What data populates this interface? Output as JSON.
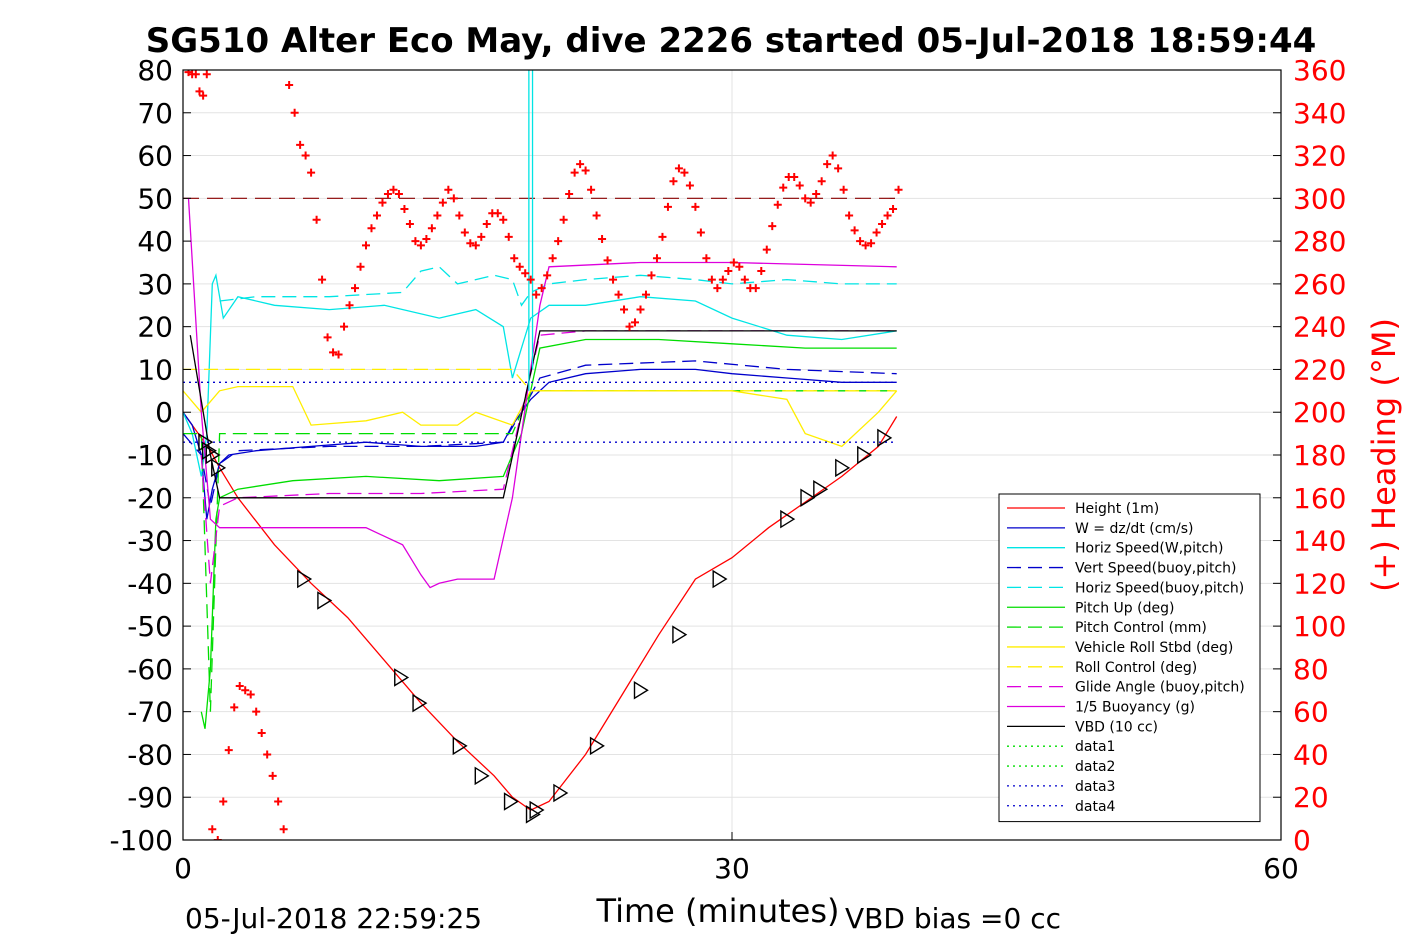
{
  "chart_data": {
    "type": "line",
    "title": "SG510 Alter Eco May, dive 2226 started 05-Jul-2018 18:59:44",
    "xlabel": "Time (minutes)",
    "ylabel_right": "(+) Heading (°M)",
    "xlim": [
      0,
      60
    ],
    "ylim": [
      -100,
      80
    ],
    "y2lim": [
      0,
      360
    ],
    "xticks": [
      "0",
      "30",
      "60"
    ],
    "yticks": [
      "80",
      "70",
      "60",
      "50",
      "40",
      "30",
      "20",
      "10",
      "0",
      "-10",
      "-20",
      "-30",
      "-40",
      "-50",
      "-60",
      "-70",
      "-80",
      "-90",
      "-100"
    ],
    "y2ticks": [
      "360",
      "340",
      "320",
      "300",
      "280",
      "260",
      "240",
      "220",
      "200",
      "180",
      "160",
      "140",
      "120",
      "100",
      "80",
      "60",
      "40",
      "20",
      "0"
    ],
    "grid": true,
    "legend_position": "lower-right",
    "footer_left": "05-Jul-2018 22:59:25",
    "footer_right": "VBD bias =0 cc",
    "colors": {
      "height": "#ff0000",
      "w": "#0000cc",
      "horiz_w": "#00e5e5",
      "pitch": "#00dd00",
      "roll": "#ffee00",
      "glide": "#dd00dd",
      "buoy": "#dd00dd",
      "vbd": "#000000",
      "heading": "#ff0000"
    },
    "series": [
      {
        "name": "Height (1m)",
        "color": "#ff0000",
        "style": "solid",
        "x": [
          0,
          0.5,
          1,
          1.5,
          2,
          3,
          5,
          7,
          9,
          11,
          13,
          15,
          17,
          18,
          19,
          20,
          22,
          24,
          26,
          28,
          30,
          32,
          34,
          36,
          38,
          39
        ],
        "y": [
          0,
          -3,
          -6,
          -9,
          -13,
          -20,
          -31,
          -40,
          -48,
          -58,
          -68,
          -77,
          -85,
          -90,
          -93,
          -91,
          -80,
          -66,
          -52,
          -39,
          -34,
          -27,
          -21,
          -15,
          -8,
          -1
        ]
      },
      {
        "name": "W = dz/dt (cm/s)",
        "color": "#0000cc",
        "style": "solid",
        "x": [
          0,
          0.5,
          1,
          1.3,
          1.6,
          2,
          2.5,
          4,
          7,
          10,
          13,
          16,
          17.5,
          18,
          19,
          20,
          22,
          25,
          28,
          30,
          33,
          36,
          39
        ],
        "y": [
          0,
          -3,
          -10,
          -25,
          -18,
          -12,
          -10,
          -9,
          -8,
          -7,
          -8,
          -8,
          -7,
          -3,
          3,
          7,
          9,
          10,
          10,
          9,
          8,
          7,
          7
        ]
      },
      {
        "name": "Horiz Speed(W,pitch)",
        "color": "#00e5e5",
        "style": "solid",
        "x": [
          0,
          0.5,
          1,
          1.3,
          1.6,
          1.8,
          2.2,
          3,
          5,
          8,
          11,
          14,
          16,
          17.5,
          18,
          18.5,
          19,
          20,
          22,
          25,
          28,
          30,
          33,
          36,
          39
        ],
        "y": [
          0,
          -5,
          -15,
          -5,
          30,
          32,
          22,
          27,
          25,
          24,
          25,
          22,
          24,
          20,
          8,
          15,
          22,
          25,
          25,
          27,
          26,
          22,
          18,
          17,
          19
        ]
      },
      {
        "name": "Vert Speed(buoy,pitch)",
        "color": "#0000cc",
        "style": "dashed",
        "x": [
          0,
          1,
          1.5,
          2,
          3,
          8,
          13,
          17.5,
          18.5,
          19.5,
          22,
          28,
          33,
          39
        ],
        "y": [
          -5,
          -10,
          -22,
          -12,
          -9,
          -8,
          -8,
          -7,
          0,
          8,
          11,
          12,
          10,
          9
        ]
      },
      {
        "name": "Horiz Speed(buoy,pitch)",
        "color": "#00e5e5",
        "style": "dashed",
        "x": [
          2,
          4,
          8,
          12,
          13,
          14,
          15,
          17,
          18,
          18.5,
          19,
          20,
          22,
          25,
          28,
          30,
          33,
          36,
          39
        ],
        "y": [
          26,
          27,
          27,
          28,
          33,
          34,
          30,
          32,
          31,
          25,
          28,
          30,
          31,
          32,
          31,
          30,
          31,
          30,
          30
        ]
      },
      {
        "name": "Pitch Up (deg)",
        "color": "#00dd00",
        "style": "solid",
        "x": [
          1,
          1.2,
          1.5,
          1.8,
          2,
          3,
          6,
          10,
          14,
          17.5,
          18.5,
          19.5,
          22,
          26,
          30,
          34,
          38,
          39
        ],
        "y": [
          -70,
          -74,
          -60,
          -25,
          -20,
          -18,
          -16,
          -15,
          -16,
          -15,
          -5,
          15,
          17,
          17,
          16,
          15,
          15,
          15
        ]
      },
      {
        "name": "Pitch Control (mm)",
        "color": "#00dd00",
        "style": "dashed",
        "x": [
          0,
          1,
          1.5,
          2,
          18,
          19,
          39
        ],
        "y": [
          -5,
          -5,
          -70,
          -5,
          -5,
          5,
          5
        ]
      },
      {
        "name": "Vehicle Roll Stbd (deg)",
        "color": "#ffee00",
        "style": "solid",
        "x": [
          0,
          1,
          2,
          3,
          6,
          7,
          10,
          12,
          13,
          15,
          16,
          18,
          19,
          22,
          25,
          28,
          30,
          33,
          34,
          36,
          38,
          39
        ],
        "y": [
          5,
          0,
          5,
          6,
          6,
          -3,
          -2,
          0,
          -3,
          -3,
          0,
          -3,
          5,
          5,
          5,
          5,
          5,
          3,
          -5,
          -8,
          0,
          5
        ]
      },
      {
        "name": "Roll Control (deg)",
        "color": "#ffee00",
        "style": "dashed",
        "x": [
          0,
          2,
          7,
          18,
          19,
          39
        ],
        "y": [
          10,
          10,
          10,
          10,
          5,
          5
        ]
      },
      {
        "name": "Glide Angle (buoy,pitch)",
        "color": "#dd00dd",
        "style": "dashed",
        "x": [
          1,
          1.5,
          2,
          3,
          8,
          13,
          17.5,
          18.5,
          19.5,
          22,
          28,
          34,
          39
        ],
        "y": [
          -10,
          -40,
          -22,
          -20,
          -19,
          -19,
          -18,
          0,
          18,
          19,
          19,
          19,
          19
        ]
      },
      {
        "name": "1/5 Buoyancy (g)",
        "color": "#dd00dd",
        "style": "solid",
        "x": [
          0.3,
          1,
          1.5,
          2,
          5,
          10,
          12,
          13,
          13.5,
          14,
          15,
          17,
          18,
          18.5,
          19.5,
          20,
          25,
          30,
          39
        ],
        "y": [
          50,
          0,
          -25,
          -27,
          -27,
          -27,
          -31,
          -38,
          -41,
          -40,
          -39,
          -39,
          -20,
          -5,
          25,
          34,
          35,
          35,
          34
        ]
      },
      {
        "name": "VBD (10 cc)",
        "color": "#000000",
        "style": "solid",
        "x": [
          0.4,
          1.5,
          2,
          17.5,
          19.5,
          39
        ],
        "y": [
          18,
          -10,
          -20,
          -20,
          19,
          19
        ]
      },
      {
        "name": "data1",
        "color": "#00dd00",
        "style": "dotted",
        "x": [],
        "y": []
      },
      {
        "name": "data2",
        "color": "#00dd00",
        "style": "dotted",
        "x": [],
        "y": []
      },
      {
        "name": "data3",
        "color": "#0000cc",
        "style": "dotted",
        "x": [
          0,
          39
        ],
        "y": [
          7,
          7
        ]
      },
      {
        "name": "data4",
        "color": "#0000cc",
        "style": "dotted",
        "x": [
          0,
          39
        ],
        "y": [
          -7,
          -7
        ]
      }
    ],
    "reference_line": {
      "y": 50,
      "color": "#8b0000",
      "style": "dashed",
      "x": [
        0,
        39
      ]
    },
    "cyan_spike": {
      "x": [
        18.9,
        19.1
      ],
      "y": [
        80,
        80
      ]
    },
    "triangles": {
      "x": [
        1.2,
        1.4,
        1.6,
        1.9,
        6.6,
        7.7,
        11.9,
        12.9,
        15.1,
        16.3,
        17.9,
        19.1,
        19.3,
        20.6,
        22.6,
        25.0,
        27.1,
        29.3,
        33.0,
        34.1,
        34.8,
        36.0,
        37.2,
        38.3
      ],
      "y": [
        -7,
        -9,
        -10,
        -13,
        -39,
        -44,
        -62,
        -68,
        -78,
        -85,
        -91,
        -94,
        -93,
        -89,
        -78,
        -65,
        -52,
        -39,
        -25,
        -20,
        -18,
        -13,
        -10,
        -6
      ]
    },
    "heading": {
      "name": "(+) Heading (°M)",
      "x": [
        0.3,
        0.5,
        0.7,
        0.9,
        1.1,
        1.3,
        1.6,
        1.9,
        2.2,
        2.5,
        2.8,
        3.1,
        3.4,
        3.7,
        4.0,
        4.3,
        4.6,
        4.9,
        5.2,
        5.5,
        5.8,
        6.1,
        6.4,
        6.7,
        7.0,
        7.3,
        7.6,
        7.9,
        8.2,
        8.5,
        8.8,
        9.1,
        9.4,
        9.7,
        10.0,
        10.3,
        10.6,
        10.9,
        11.2,
        11.5,
        11.8,
        12.1,
        12.4,
        12.7,
        13.0,
        13.3,
        13.6,
        13.9,
        14.2,
        14.5,
        14.8,
        15.1,
        15.4,
        15.7,
        16.0,
        16.3,
        16.6,
        16.9,
        17.2,
        17.5,
        17.8,
        18.1,
        18.4,
        18.7,
        19.0,
        19.3,
        19.6,
        19.9,
        20.2,
        20.5,
        20.8,
        21.1,
        21.4,
        21.7,
        22.0,
        22.3,
        22.6,
        22.9,
        23.2,
        23.5,
        23.8,
        24.1,
        24.4,
        24.7,
        25.0,
        25.3,
        25.6,
        25.9,
        26.2,
        26.5,
        26.8,
        27.1,
        27.4,
        27.7,
        28.0,
        28.3,
        28.6,
        28.9,
        29.2,
        29.5,
        29.8,
        30.1,
        30.4,
        30.7,
        31.0,
        31.3,
        31.6,
        31.9,
        32.2,
        32.5,
        32.8,
        33.1,
        33.4,
        33.7,
        34.0,
        34.3,
        34.6,
        34.9,
        35.2,
        35.5,
        35.8,
        36.1,
        36.4,
        36.7,
        37.0,
        37.3,
        37.6,
        37.9,
        38.2,
        38.5,
        38.8,
        39.1
      ],
      "y": [
        359,
        358,
        358,
        350,
        348,
        358,
        5,
        0,
        18,
        42,
        62,
        72,
        70,
        68,
        60,
        50,
        40,
        30,
        18,
        5,
        353,
        340,
        325,
        320,
        312,
        290,
        262,
        235,
        228,
        227,
        240,
        250,
        258,
        268,
        278,
        286,
        292,
        298,
        302,
        304,
        302,
        295,
        288,
        280,
        278,
        281,
        286,
        292,
        298,
        304,
        300,
        292,
        284,
        279,
        278,
        282,
        288,
        293,
        293,
        290,
        282,
        272,
        268,
        265,
        262,
        255,
        258,
        264,
        272,
        280,
        290,
        302,
        312,
        316,
        313,
        304,
        292,
        281,
        271,
        262,
        255,
        248,
        240,
        242,
        248,
        255,
        264,
        272,
        282,
        296,
        308,
        314,
        312,
        306,
        296,
        284,
        272,
        262,
        258,
        262,
        266,
        270,
        268,
        262,
        258,
        258,
        266,
        276,
        287,
        297,
        305,
        310,
        310,
        306,
        300,
        298,
        302,
        308,
        316,
        320,
        314,
        304,
        292,
        285,
        280,
        278,
        279,
        284,
        288,
        292,
        295,
        304
      ]
    }
  }
}
